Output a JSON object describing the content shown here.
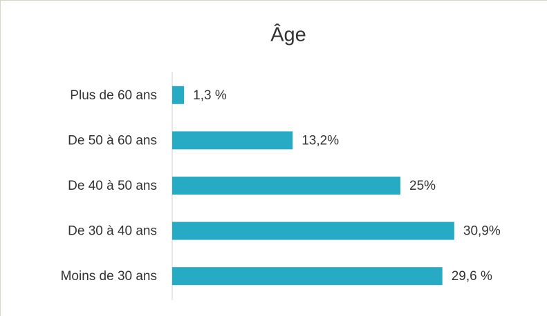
{
  "chart_data": {
    "type": "hbar",
    "title": "Âge",
    "categories": [
      "Plus de 60 ans",
      "De 50 à 60 ans",
      "De 40 à 50 ans",
      "De 30 à 40 ans",
      "Moins de 30 ans"
    ],
    "values": [
      1.3,
      13.2,
      25,
      30.9,
      29.6
    ],
    "value_labels": [
      "1,3 %",
      "13,2%",
      "25%",
      "30,9%",
      "29,6 %"
    ],
    "color": "#27aac4",
    "xlim": [
      0,
      40
    ]
  }
}
